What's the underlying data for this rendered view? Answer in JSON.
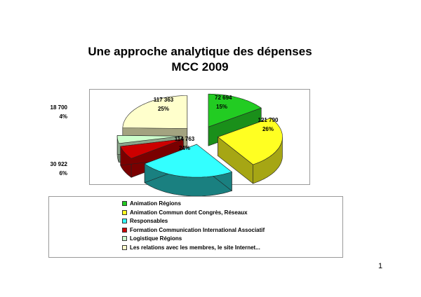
{
  "title_line1": "Une approche analytique des dépenses",
  "title_line2": "MCC 2009",
  "page_number": "1",
  "chart_data": {
    "type": "pie",
    "three_d": true,
    "title": "Une approche analytique des dépenses MCC 2009",
    "labels": [
      "Animation Régions",
      "Animation Commun dont Congrès, Réseaux",
      "Responsables",
      "Formation Communication International Associatif",
      "Logistique Régions",
      "Les relations avec les membres, le site Internet..."
    ],
    "values": [
      72694,
      121790,
      114763,
      30922,
      18700,
      117363
    ],
    "value_labels": [
      "72 694",
      "121 790",
      "114 763",
      "30 922",
      "18 700",
      "117 363"
    ],
    "percent_labels": [
      "15%",
      "26%",
      "24%",
      "6%",
      "4%",
      "25%"
    ],
    "colors": [
      "#22cc22",
      "#ffff22",
      "#33ffff",
      "#cc0000",
      "#ccffcc",
      "#ffffcc"
    ],
    "side_colors": [
      "#1a8f1a",
      "#a6a614",
      "#1a8080",
      "#7a0000",
      "#8aa58a",
      "#a3a380"
    ],
    "legend_position": "bottom"
  }
}
